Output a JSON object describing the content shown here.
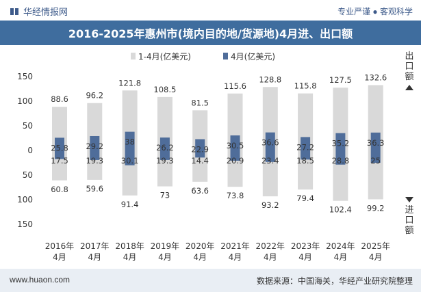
{
  "header": {
    "brand": "华经情报网",
    "tags": "专业严谨 ● 客观科学"
  },
  "title": "2016-2025年惠州市(境内目的地/货源地)4月进、出口额",
  "footer": {
    "url": "www.huaon.com",
    "source": "数据来源：中国海关，华经产业研究院整理"
  },
  "side_labels": {
    "export_top": "出口额",
    "import_bottom": "进口额"
  },
  "colors": {
    "cumulative": "#d9d9d9",
    "monthly": "#4f6d9a"
  },
  "chart_data": {
    "type": "bar",
    "categories": [
      "2016年\n4月",
      "2017年\n4月",
      "2018年\n4月",
      "2019年\n4月",
      "2020年\n4月",
      "2021年\n4月",
      "2022年\n4月",
      "2023年\n4月",
      "2024年\n4月",
      "2025年\n4月"
    ],
    "ylim": [
      -150,
      150
    ],
    "yticks": [
      150,
      100,
      50,
      0,
      50,
      100,
      150
    ],
    "series": [
      {
        "name": "1-4月(亿美元)",
        "export": [
          88.6,
          96.2,
          121.8,
          108.5,
          81.5,
          115.6,
          128.8,
          115.8,
          127.5,
          132.6
        ],
        "import": [
          60.8,
          59.6,
          91.4,
          73,
          63.6,
          73.8,
          93.2,
          79.4,
          102.4,
          99.2
        ]
      },
      {
        "name": "4月(亿美元)",
        "export": [
          25.8,
          29.2,
          38,
          26.2,
          22.9,
          30.5,
          36.6,
          27.2,
          35.2,
          36.3
        ],
        "import": [
          17.5,
          19.3,
          30.1,
          19.3,
          14.4,
          20.9,
          23.4,
          18.5,
          28.8,
          25
        ]
      }
    ]
  }
}
